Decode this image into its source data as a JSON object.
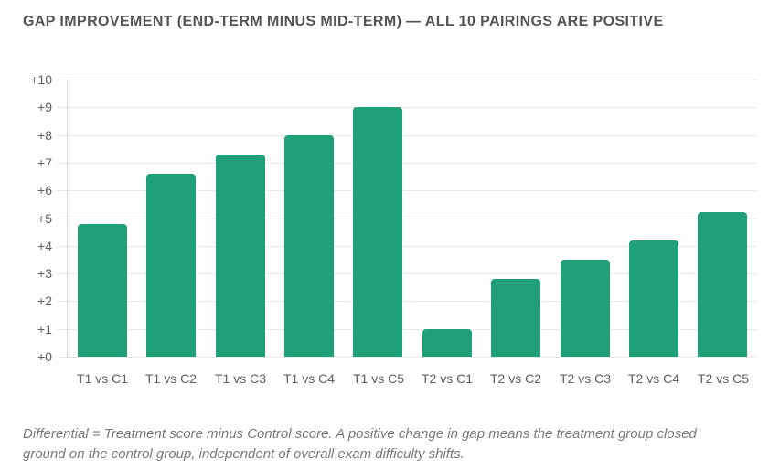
{
  "title": "GAP IMPROVEMENT (END-TERM MINUS MID-TERM) — ALL 10 PAIRINGS ARE POSITIVE",
  "footnote": "Differential = Treatment score minus Control score. A positive change in gap means the treatment group closed ground on the control group, independent of overall exam difficulty shifts.",
  "colors": {
    "bar": "#1fa078",
    "title": "#545456",
    "axis_label": "#5f5f5f",
    "footnote": "#7a7a7a",
    "gridline": "#e9e9e9",
    "axis_line": "#d6d6d6",
    "background": "#ffffff"
  },
  "chart_data": {
    "type": "bar",
    "title": "GAP IMPROVEMENT (END-TERM MINUS MID-TERM) — ALL 10 PAIRINGS ARE POSITIVE",
    "categories": [
      "T1 vs C1",
      "T1 vs C2",
      "T1 vs C3",
      "T1 vs C4",
      "T1 vs C5",
      "T2 vs C1",
      "T2 vs C2",
      "T2 vs C3",
      "T2 vs C4",
      "T2 vs C5"
    ],
    "values": [
      4.8,
      6.6,
      7.3,
      8.0,
      9.0,
      1.0,
      2.8,
      3.5,
      4.2,
      5.2
    ],
    "xlabel": "",
    "ylabel": "",
    "ylim": [
      0,
      10
    ],
    "ytick_step": 1,
    "ytick_prefix": "+",
    "ytick_labels": [
      "+0",
      "+1",
      "+2",
      "+3",
      "+4",
      "+5",
      "+6",
      "+7",
      "+8",
      "+9",
      "+10"
    ],
    "grid": true,
    "legend": false,
    "bar_color": "#1fa078"
  }
}
